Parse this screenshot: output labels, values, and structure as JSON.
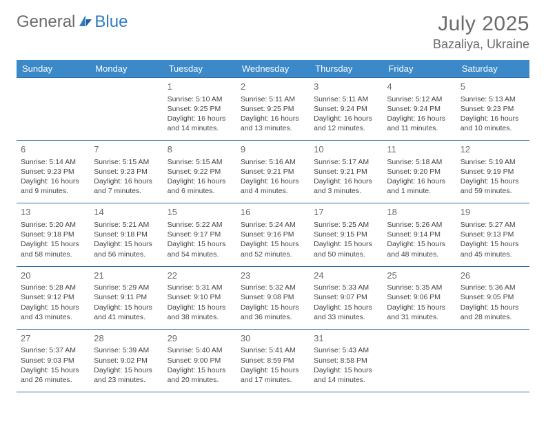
{
  "brand": {
    "part1": "General",
    "part2": "Blue"
  },
  "title": "July 2025",
  "location": "Bazaliya, Ukraine",
  "colors": {
    "header_bg": "#3b89c9",
    "header_text": "#ffffff",
    "rule": "#2f6fa8",
    "daynum": "#6b6b6b",
    "body_text": "#444444",
    "brand_gray": "#6b6b6b",
    "brand_blue": "#2f7bbf"
  },
  "weekdays": [
    "Sunday",
    "Monday",
    "Tuesday",
    "Wednesday",
    "Thursday",
    "Friday",
    "Saturday"
  ],
  "weeks": [
    [
      null,
      null,
      {
        "n": "1",
        "sr": "Sunrise: 5:10 AM",
        "ss": "Sunset: 9:25 PM",
        "dl": "Daylight: 16 hours and 14 minutes."
      },
      {
        "n": "2",
        "sr": "Sunrise: 5:11 AM",
        "ss": "Sunset: 9:25 PM",
        "dl": "Daylight: 16 hours and 13 minutes."
      },
      {
        "n": "3",
        "sr": "Sunrise: 5:11 AM",
        "ss": "Sunset: 9:24 PM",
        "dl": "Daylight: 16 hours and 12 minutes."
      },
      {
        "n": "4",
        "sr": "Sunrise: 5:12 AM",
        "ss": "Sunset: 9:24 PM",
        "dl": "Daylight: 16 hours and 11 minutes."
      },
      {
        "n": "5",
        "sr": "Sunrise: 5:13 AM",
        "ss": "Sunset: 9:23 PM",
        "dl": "Daylight: 16 hours and 10 minutes."
      }
    ],
    [
      {
        "n": "6",
        "sr": "Sunrise: 5:14 AM",
        "ss": "Sunset: 9:23 PM",
        "dl": "Daylight: 16 hours and 9 minutes."
      },
      {
        "n": "7",
        "sr": "Sunrise: 5:15 AM",
        "ss": "Sunset: 9:23 PM",
        "dl": "Daylight: 16 hours and 7 minutes."
      },
      {
        "n": "8",
        "sr": "Sunrise: 5:15 AM",
        "ss": "Sunset: 9:22 PM",
        "dl": "Daylight: 16 hours and 6 minutes."
      },
      {
        "n": "9",
        "sr": "Sunrise: 5:16 AM",
        "ss": "Sunset: 9:21 PM",
        "dl": "Daylight: 16 hours and 4 minutes."
      },
      {
        "n": "10",
        "sr": "Sunrise: 5:17 AM",
        "ss": "Sunset: 9:21 PM",
        "dl": "Daylight: 16 hours and 3 minutes."
      },
      {
        "n": "11",
        "sr": "Sunrise: 5:18 AM",
        "ss": "Sunset: 9:20 PM",
        "dl": "Daylight: 16 hours and 1 minute."
      },
      {
        "n": "12",
        "sr": "Sunrise: 5:19 AM",
        "ss": "Sunset: 9:19 PM",
        "dl": "Daylight: 15 hours and 59 minutes."
      }
    ],
    [
      {
        "n": "13",
        "sr": "Sunrise: 5:20 AM",
        "ss": "Sunset: 9:18 PM",
        "dl": "Daylight: 15 hours and 58 minutes."
      },
      {
        "n": "14",
        "sr": "Sunrise: 5:21 AM",
        "ss": "Sunset: 9:18 PM",
        "dl": "Daylight: 15 hours and 56 minutes."
      },
      {
        "n": "15",
        "sr": "Sunrise: 5:22 AM",
        "ss": "Sunset: 9:17 PM",
        "dl": "Daylight: 15 hours and 54 minutes."
      },
      {
        "n": "16",
        "sr": "Sunrise: 5:24 AM",
        "ss": "Sunset: 9:16 PM",
        "dl": "Daylight: 15 hours and 52 minutes."
      },
      {
        "n": "17",
        "sr": "Sunrise: 5:25 AM",
        "ss": "Sunset: 9:15 PM",
        "dl": "Daylight: 15 hours and 50 minutes."
      },
      {
        "n": "18",
        "sr": "Sunrise: 5:26 AM",
        "ss": "Sunset: 9:14 PM",
        "dl": "Daylight: 15 hours and 48 minutes."
      },
      {
        "n": "19",
        "sr": "Sunrise: 5:27 AM",
        "ss": "Sunset: 9:13 PM",
        "dl": "Daylight: 15 hours and 45 minutes."
      }
    ],
    [
      {
        "n": "20",
        "sr": "Sunrise: 5:28 AM",
        "ss": "Sunset: 9:12 PM",
        "dl": "Daylight: 15 hours and 43 minutes."
      },
      {
        "n": "21",
        "sr": "Sunrise: 5:29 AM",
        "ss": "Sunset: 9:11 PM",
        "dl": "Daylight: 15 hours and 41 minutes."
      },
      {
        "n": "22",
        "sr": "Sunrise: 5:31 AM",
        "ss": "Sunset: 9:10 PM",
        "dl": "Daylight: 15 hours and 38 minutes."
      },
      {
        "n": "23",
        "sr": "Sunrise: 5:32 AM",
        "ss": "Sunset: 9:08 PM",
        "dl": "Daylight: 15 hours and 36 minutes."
      },
      {
        "n": "24",
        "sr": "Sunrise: 5:33 AM",
        "ss": "Sunset: 9:07 PM",
        "dl": "Daylight: 15 hours and 33 minutes."
      },
      {
        "n": "25",
        "sr": "Sunrise: 5:35 AM",
        "ss": "Sunset: 9:06 PM",
        "dl": "Daylight: 15 hours and 31 minutes."
      },
      {
        "n": "26",
        "sr": "Sunrise: 5:36 AM",
        "ss": "Sunset: 9:05 PM",
        "dl": "Daylight: 15 hours and 28 minutes."
      }
    ],
    [
      {
        "n": "27",
        "sr": "Sunrise: 5:37 AM",
        "ss": "Sunset: 9:03 PM",
        "dl": "Daylight: 15 hours and 26 minutes."
      },
      {
        "n": "28",
        "sr": "Sunrise: 5:39 AM",
        "ss": "Sunset: 9:02 PM",
        "dl": "Daylight: 15 hours and 23 minutes."
      },
      {
        "n": "29",
        "sr": "Sunrise: 5:40 AM",
        "ss": "Sunset: 9:00 PM",
        "dl": "Daylight: 15 hours and 20 minutes."
      },
      {
        "n": "30",
        "sr": "Sunrise: 5:41 AM",
        "ss": "Sunset: 8:59 PM",
        "dl": "Daylight: 15 hours and 17 minutes."
      },
      {
        "n": "31",
        "sr": "Sunrise: 5:43 AM",
        "ss": "Sunset: 8:58 PM",
        "dl": "Daylight: 15 hours and 14 minutes."
      },
      null,
      null
    ]
  ]
}
